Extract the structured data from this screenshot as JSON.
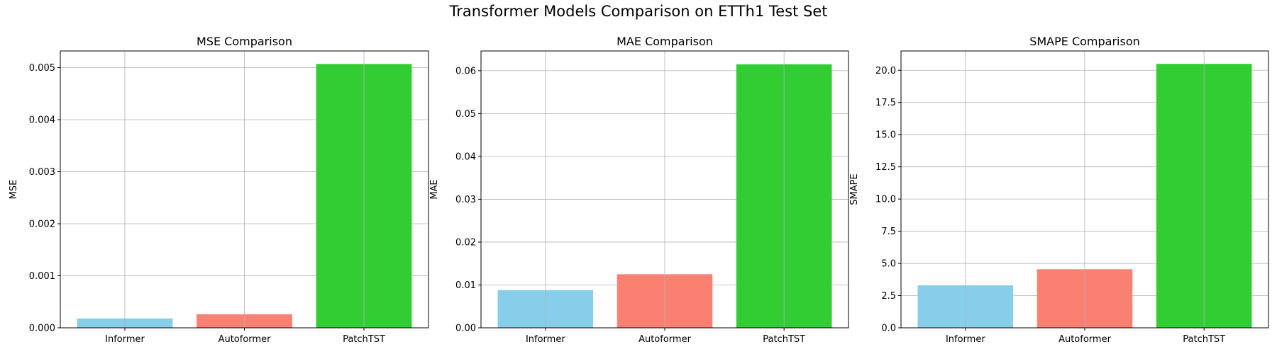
{
  "figure": {
    "title": "Transformer Models Comparison on ETTh1 Test Set"
  },
  "chart_data": [
    {
      "type": "bar",
      "title": "MSE Comparison",
      "xlabel": "",
      "ylabel": "MSE",
      "categories": [
        "Informer",
        "Autoformer",
        "PatchTST"
      ],
      "values": [
        0.00018,
        0.00026,
        0.00507
      ],
      "colors": [
        "#87ceeb",
        "#fa8072",
        "#32cd32"
      ],
      "ylim": [
        0,
        0.00532
      ],
      "yticks": [
        0,
        0.001,
        0.002,
        0.003,
        0.004,
        0.005
      ],
      "ytick_labels": [
        "0.000",
        "0.001",
        "0.002",
        "0.003",
        "0.004",
        "0.005"
      ],
      "grid": true
    },
    {
      "type": "bar",
      "title": "MAE Comparison",
      "xlabel": "",
      "ylabel": "MAE",
      "categories": [
        "Informer",
        "Autoformer",
        "PatchTST"
      ],
      "values": [
        0.0088,
        0.0125,
        0.0615
      ],
      "colors": [
        "#87ceeb",
        "#fa8072",
        "#32cd32"
      ],
      "ylim": [
        0,
        0.0646
      ],
      "yticks": [
        0,
        0.01,
        0.02,
        0.03,
        0.04,
        0.05,
        0.06
      ],
      "ytick_labels": [
        "0.00",
        "0.01",
        "0.02",
        "0.03",
        "0.04",
        "0.05",
        "0.06"
      ],
      "grid": true
    },
    {
      "type": "bar",
      "title": "SMAPE Comparison",
      "xlabel": "",
      "ylabel": "SMAPE",
      "categories": [
        "Informer",
        "Autoformer",
        "PatchTST"
      ],
      "values": [
        3.3,
        4.55,
        20.5
      ],
      "colors": [
        "#87ceeb",
        "#fa8072",
        "#32cd32"
      ],
      "ylim": [
        0,
        21.5
      ],
      "yticks": [
        0,
        2.5,
        5,
        7.5,
        10,
        12.5,
        15,
        17.5,
        20
      ],
      "ytick_labels": [
        "0.0",
        "2.5",
        "5.0",
        "7.5",
        "10.0",
        "12.5",
        "15.0",
        "17.5",
        "20.0"
      ],
      "grid": true
    }
  ]
}
